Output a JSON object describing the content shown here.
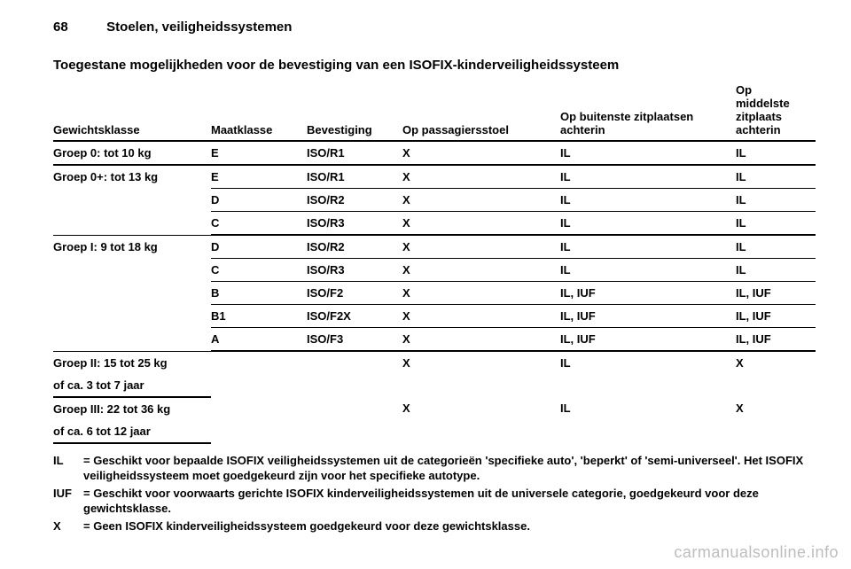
{
  "page_number": "68",
  "chapter": "Stoelen, veiligheidssystemen",
  "section_title": "Toegestane mogelijkheden voor de bevestiging van een ISOFIX-kinderveiligheidssysteem",
  "table": {
    "columns": {
      "weight": "Gewichtsklasse",
      "class": "Maatklasse",
      "fixation": "Bevestiging",
      "passenger": "Op passagiersstoel",
      "outer_rear": "Op buitenste zitplaatsen achterin",
      "middle_rear": "Op middelste zitplaats achterin"
    },
    "groups": [
      {
        "label": "Groep 0: tot 10 kg",
        "rows": [
          {
            "class": "E",
            "fix": "ISO/R1",
            "pass": "X",
            "outer": "IL",
            "middle": "IL"
          }
        ]
      },
      {
        "label": "Groep 0+: tot 13 kg",
        "rows": [
          {
            "class": "E",
            "fix": "ISO/R1",
            "pass": "X",
            "outer": "IL",
            "middle": "IL"
          },
          {
            "class": "D",
            "fix": "ISO/R2",
            "pass": "X",
            "outer": "IL",
            "middle": "IL"
          },
          {
            "class": "C",
            "fix": "ISO/R3",
            "pass": "X",
            "outer": "IL",
            "middle": "IL"
          }
        ]
      },
      {
        "label": "Groep I: 9 tot 18 kg",
        "rows": [
          {
            "class": "D",
            "fix": "ISO/R2",
            "pass": "X",
            "outer": "IL",
            "middle": "IL"
          },
          {
            "class": "C",
            "fix": "ISO/R3",
            "pass": "X",
            "outer": "IL",
            "middle": "IL"
          },
          {
            "class": "B",
            "fix": "ISO/F2",
            "pass": "X",
            "outer": "IL, IUF",
            "middle": "IL, IUF"
          },
          {
            "class": "B1",
            "fix": "ISO/F2X",
            "pass": "X",
            "outer": "IL, IUF",
            "middle": "IL, IUF"
          },
          {
            "class": "A",
            "fix": "ISO/F3",
            "pass": "X",
            "outer": "IL, IUF",
            "middle": "IL, IUF"
          }
        ]
      },
      {
        "label": "Groep II: 15 tot 25 kg",
        "sub": "of ca. 3 tot 7 jaar",
        "rows": [
          {
            "class": "",
            "fix": "",
            "pass": "X",
            "outer": "IL",
            "middle": "X"
          }
        ]
      },
      {
        "label": "Groep III: 22 tot 36 kg",
        "sub": "of ca. 6 tot 12 jaar",
        "rows": [
          {
            "class": "",
            "fix": "",
            "pass": "X",
            "outer": "IL",
            "middle": "X"
          }
        ]
      }
    ]
  },
  "legend": [
    {
      "key": "IL",
      "text": "= Geschikt voor bepaalde ISOFIX veiligheidssystemen uit de categorieën 'specifieke auto', 'beperkt' of 'semi-universeel'. Het ISOFIX veiligheidssysteem moet goedgekeurd zijn voor het specifieke autotype."
    },
    {
      "key": "IUF",
      "text": "= Geschikt voor voorwaarts gerichte ISOFIX kinderveiligheidssystemen uit de universele categorie, goedgekeurd voor deze gewichtsklasse."
    },
    {
      "key": "X",
      "text": "= Geen ISOFIX kinderveiligheidssysteem goedgekeurd voor deze gewichtsklasse."
    }
  ],
  "watermark": "carmanualsonline.info"
}
